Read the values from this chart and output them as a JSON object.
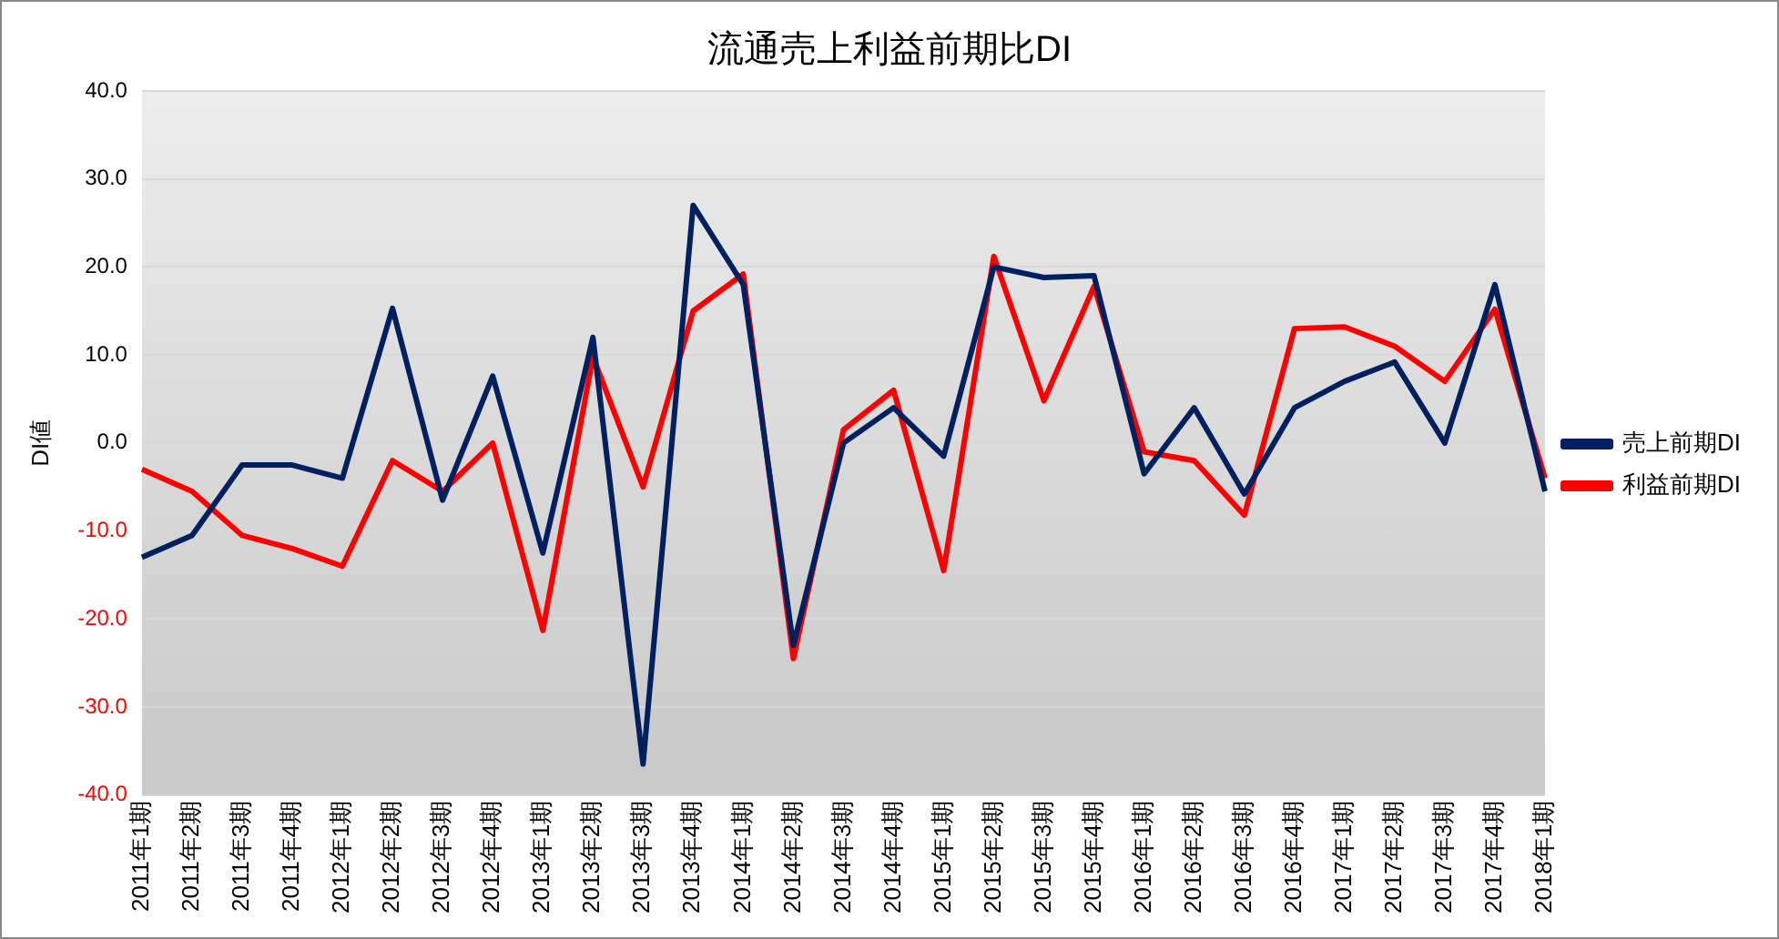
{
  "chart_data": {
    "type": "line",
    "title": "流通売上利益前期比DI",
    "ylabel": "DI値",
    "categories": [
      "2011年1期",
      "2011年2期",
      "2011年3期",
      "2011年4期",
      "2012年1期",
      "2012年2期",
      "2012年3期",
      "2012年4期",
      "2013年1期",
      "2013年2期",
      "2013年3期",
      "2013年4期",
      "2014年1期",
      "2014年2期",
      "2014年3期",
      "2014年4期",
      "2015年1期",
      "2015年2期",
      "2015年3期",
      "2015年4期",
      "2016年1期",
      "2016年2期",
      "2016年3期",
      "2016年4期",
      "2017年1期",
      "2017年2期",
      "2017年3期",
      "2017年4期",
      "2018年1期"
    ],
    "series": [
      {
        "name": "売上前期DI",
        "color": "#002060",
        "values": [
          -13,
          -10.5,
          -2.5,
          -2.5,
          -4,
          15.3,
          -6.5,
          7.6,
          -12.5,
          12,
          -36.5,
          27,
          18,
          -23,
          0,
          4,
          -1.5,
          20,
          18.8,
          19,
          -3.5,
          4,
          -5.8,
          4,
          7,
          9.2,
          0,
          18,
          -5.5
        ]
      },
      {
        "name": "利益前期DI",
        "color": "#ff0000",
        "values": [
          -3,
          -5.5,
          -10.5,
          -12,
          -14,
          -2,
          -5.5,
          0,
          -21.3,
          9.8,
          -5,
          15,
          19.2,
          -24.5,
          1.5,
          6,
          -14.5,
          21.2,
          4.8,
          17.8,
          -1,
          -2,
          -8.2,
          13,
          13.2,
          11,
          7,
          15.2,
          -4
        ]
      }
    ],
    "ylim": [
      -40,
      40
    ],
    "yticks": [
      {
        "value": -40,
        "label": "-40.0"
      },
      {
        "value": -30,
        "label": "-30.0"
      },
      {
        "value": -20,
        "label": "-20.0"
      },
      {
        "value": -10,
        "label": "-10.0"
      },
      {
        "value": 0,
        "label": "0.0"
      },
      {
        "value": 10,
        "label": "10.0"
      },
      {
        "value": 20,
        "label": "20.0"
      },
      {
        "value": 30,
        "label": "30.0"
      },
      {
        "value": 40,
        "label": "40.0"
      }
    ],
    "grid": "y",
    "legend": "right",
    "marker": "none",
    "line_style": "solid"
  }
}
